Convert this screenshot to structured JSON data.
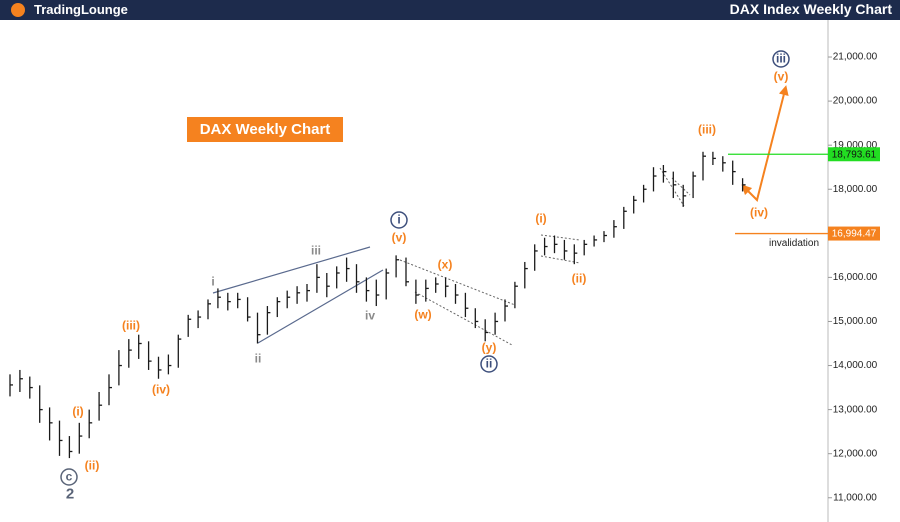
{
  "brand": "TradingLounge",
  "chart_data": {
    "type": "ohlc",
    "title": "DAX Index Weekly Chart",
    "banner": "DAX Weekly Chart",
    "close": [
      13560,
      13700,
      13500,
      13000,
      12700,
      12300,
      12050,
      12400,
      12700,
      13100,
      13500,
      14000,
      14350,
      14500,
      14100,
      13900,
      14000,
      14600,
      15050,
      15100,
      15400,
      15550,
      15450,
      15500,
      15100,
      14700,
      15200,
      15450,
      15550,
      15650,
      15700,
      16000,
      15800,
      16100,
      16200,
      15900,
      15700,
      15600,
      16100,
      16400,
      15900,
      15600,
      15750,
      15850,
      15800,
      15600,
      15300,
      15000,
      14750,
      15000,
      15350,
      15800,
      16200,
      16600,
      16700,
      16750,
      16600,
      16550,
      16750,
      16850,
      16950,
      17150,
      17500,
      17750,
      18000,
      18300,
      18400,
      18100,
      17850,
      18300,
      18750,
      18700,
      18600,
      18400,
      18100
    ],
    "high": [
      13800,
      13900,
      13750,
      13550,
      13050,
      12750,
      12400,
      12700,
      13000,
      13400,
      13800,
      14350,
      14600,
      14700,
      14550,
      14200,
      14250,
      14700,
      15150,
      15250,
      15500,
      15750,
      15650,
      15650,
      15550,
      15200,
      15350,
      15550,
      15700,
      15800,
      15850,
      16300,
      16100,
      16250,
      16450,
      16300,
      16000,
      15950,
      16200,
      16500,
      16450,
      15950,
      15950,
      16000,
      16000,
      15850,
      15650,
      15300,
      15050,
      15200,
      15500,
      15900,
      16350,
      16750,
      16900,
      16950,
      16850,
      16750,
      16850,
      16950,
      17050,
      17300,
      17600,
      17850,
      18100,
      18500,
      18550,
      18400,
      18100,
      18400,
      18850,
      18850,
      18750,
      18650,
      18250
    ],
    "low": [
      13300,
      13400,
      13250,
      12700,
      12300,
      11950,
      11900,
      12000,
      12350,
      12750,
      13100,
      13550,
      13950,
      14150,
      13900,
      13700,
      13800,
      13950,
      14650,
      14850,
      15050,
      15300,
      15250,
      15300,
      15000,
      14500,
      14700,
      15100,
      15300,
      15400,
      15450,
      15650,
      15550,
      15750,
      15900,
      15650,
      15450,
      15350,
      15500,
      16000,
      15800,
      15400,
      15450,
      15650,
      15550,
      15400,
      15100,
      14850,
      14550,
      14700,
      15000,
      15300,
      15750,
      16150,
      16500,
      16550,
      16400,
      16300,
      16500,
      16700,
      16800,
      16900,
      17100,
      17450,
      17700,
      17950,
      18150,
      17800,
      17600,
      17800,
      18200,
      18550,
      18400,
      18100,
      17950
    ],
    "color": "#1a1a1a",
    "ylim": [
      10450,
      21840
    ],
    "yticks": [
      {
        "value": 11000,
        "label": "11,000.00"
      },
      {
        "value": 12000,
        "label": "12,000.00"
      },
      {
        "value": 13000,
        "label": "13,000.00"
      },
      {
        "value": 14000,
        "label": "14,000.00"
      },
      {
        "value": 15000,
        "label": "15,000.00"
      },
      {
        "value": 16000,
        "label": "16,000.00"
      },
      {
        "value": 17000,
        "label": "17,000.00"
      },
      {
        "value": 18000,
        "label": "18,000.00"
      },
      {
        "value": 19000,
        "label": "19,000.00"
      },
      {
        "value": 20000,
        "label": "20,000.00"
      },
      {
        "value": 21000,
        "label": "21,000.00"
      }
    ],
    "levels": [
      {
        "value": 18793.61,
        "label": "18,793.61",
        "color": "#22dd22"
      },
      {
        "value": 16994.47,
        "label": "16,994.47",
        "color": "#f5821f"
      }
    ],
    "annotations": [
      {
        "text": "(i)",
        "color": "#f5821f"
      },
      {
        "text": "(ii)",
        "color": "#f5821f"
      },
      {
        "text": "c",
        "color": "#5a6478",
        "circled": true
      },
      {
        "text": "2",
        "color": "#5a6478"
      },
      {
        "text": "(iii)",
        "color": "#f5821f"
      },
      {
        "text": "(iv)",
        "color": "#f5821f"
      },
      {
        "text": "i",
        "color": "#8a8a8a"
      },
      {
        "text": "ii",
        "color": "#8a8a8a"
      },
      {
        "text": "iii",
        "color": "#8a8a8a"
      },
      {
        "text": "iv",
        "color": "#8a8a8a"
      },
      {
        "text": "i",
        "color": "#3d4f7c",
        "circled": true
      },
      {
        "text": "(v)",
        "color": "#f5821f"
      },
      {
        "text": "(x)",
        "color": "#f5821f"
      },
      {
        "text": "(w)",
        "color": "#f5821f"
      },
      {
        "text": "(y)",
        "color": "#f5821f"
      },
      {
        "text": "ii",
        "color": "#3d4f7c",
        "circled": true
      },
      {
        "text": "(i)",
        "color": "#f5821f"
      },
      {
        "text": "(ii)",
        "color": "#f5821f"
      },
      {
        "text": "(iii)",
        "color": "#f5821f"
      },
      {
        "text": "(iv)",
        "color": "#f5821f"
      },
      {
        "text": "(v)",
        "color": "#f5821f"
      },
      {
        "text": "iii",
        "color": "#3d4f7c",
        "circled": true
      },
      {
        "text": "invalidation",
        "color": "#222222"
      }
    ]
  }
}
